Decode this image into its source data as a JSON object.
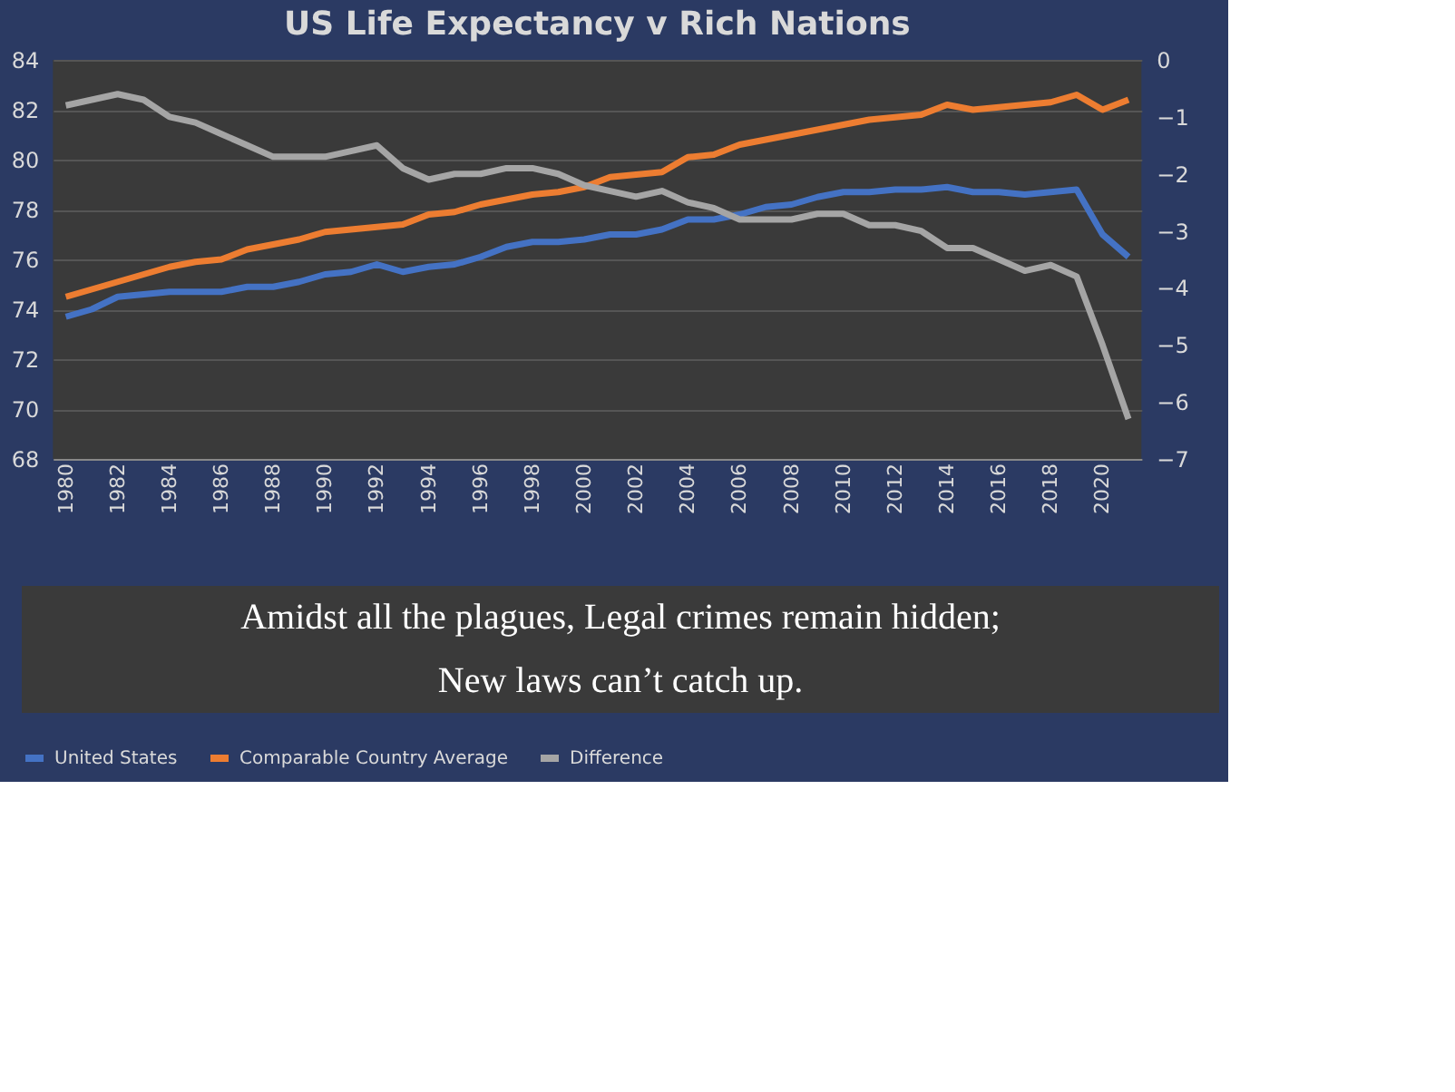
{
  "chart_data": {
    "type": "line",
    "title": "US Life Expectancy v Rich Nations",
    "categories": [
      "1980",
      null,
      "1982",
      null,
      "1984",
      null,
      "1986",
      null,
      "1988",
      null,
      "1990",
      null,
      "1992",
      null,
      "1994",
      null,
      "1996",
      null,
      "1998",
      null,
      "2000",
      null,
      "2002",
      null,
      "2004",
      null,
      "2006",
      null,
      "2008",
      null,
      "2010",
      null,
      "2012",
      null,
      "2014",
      null,
      "2016",
      null,
      "2018",
      null,
      "2020",
      null
    ],
    "series": [
      {
        "name": "United States",
        "color": "#4472c4",
        "values": [
          73.7,
          74.0,
          74.5,
          74.6,
          74.7,
          74.7,
          74.7,
          74.9,
          74.9,
          75.1,
          75.4,
          75.5,
          75.8,
          75.5,
          75.7,
          75.8,
          76.1,
          76.5,
          76.7,
          76.7,
          76.8,
          77.0,
          77.0,
          77.2,
          77.6,
          77.6,
          77.8,
          78.1,
          78.2,
          78.5,
          78.7,
          78.7,
          78.8,
          78.8,
          78.9,
          78.7,
          78.7,
          78.6,
          78.7,
          78.8,
          77.0,
          76.1
        ]
      },
      {
        "name": "Comparable Country Average",
        "color": "#ed7d31",
        "values": [
          74.5,
          74.8,
          75.1,
          75.4,
          75.7,
          75.9,
          76.0,
          76.4,
          76.6,
          76.8,
          77.1,
          77.2,
          77.3,
          77.4,
          77.8,
          77.9,
          78.2,
          78.4,
          78.6,
          78.7,
          78.9,
          79.3,
          79.4,
          79.5,
          80.1,
          80.2,
          80.6,
          80.8,
          81.0,
          81.2,
          81.4,
          81.6,
          81.7,
          81.8,
          82.2,
          82.0,
          82.1,
          82.2,
          82.3,
          82.6,
          82.0,
          82.4
        ]
      },
      {
        "name": "Difference",
        "color": "#a5a5a5",
        "axis": "y2",
        "values": [
          -0.8,
          -0.7,
          -0.6,
          -0.7,
          -1.0,
          -1.1,
          -1.3,
          -1.5,
          -1.7,
          -1.7,
          -1.7,
          -1.6,
          -1.5,
          -1.9,
          -2.1,
          -2.0,
          -2.0,
          -1.9,
          -1.9,
          -2.0,
          -2.2,
          -2.3,
          -2.4,
          -2.3,
          -2.5,
          -2.6,
          -2.8,
          -2.8,
          -2.8,
          -2.7,
          -2.7,
          -2.9,
          -2.9,
          -3.0,
          -3.3,
          -3.3,
          -3.5,
          -3.7,
          -3.6,
          -3.8,
          -5.0,
          -6.3
        ]
      }
    ],
    "ylim": [
      68,
      84
    ],
    "yticks": [
      68,
      70,
      72,
      74,
      76,
      78,
      80,
      82,
      84
    ],
    "y2lim": [
      -7,
      0
    ],
    "y2ticks": [
      -7,
      -6,
      -5,
      -4,
      -3,
      -2,
      -1,
      0
    ],
    "grid": "y",
    "legend": "bottom",
    "marker": "none",
    "line_style": "solid",
    "annotations": [
      "Amidst all the plagues,  Legal crimes remain hidden;",
      "New laws can’t catch up."
    ]
  }
}
